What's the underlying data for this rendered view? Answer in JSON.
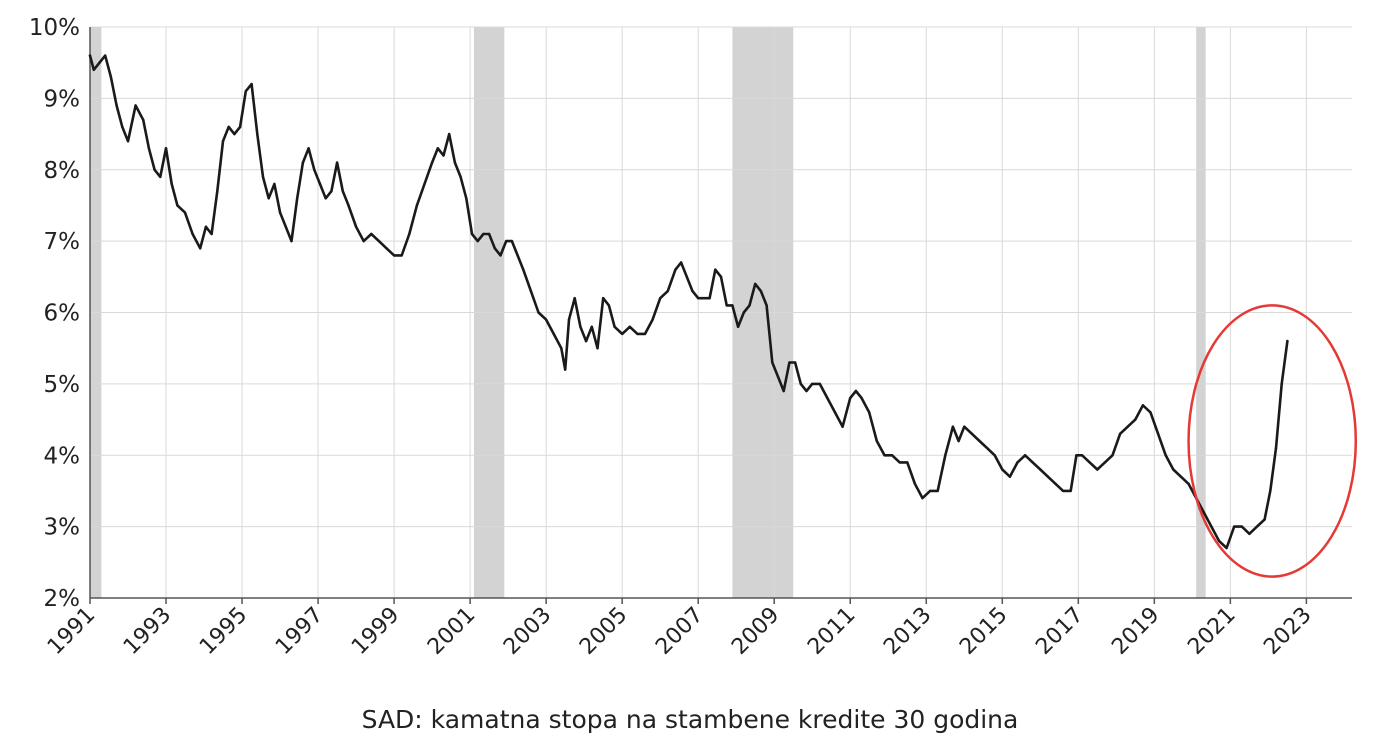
{
  "chart_data": {
    "type": "line",
    "title": "SAD: kamatna stopa na stambene kredite 30 godina",
    "xlabel": "",
    "ylabel": "",
    "xlim": [
      1991,
      2024.2
    ],
    "ylim": [
      2,
      10
    ],
    "x_ticks": [
      1991,
      1993,
      1995,
      1997,
      1999,
      2001,
      2003,
      2005,
      2007,
      2009,
      2011,
      2013,
      2015,
      2017,
      2019,
      2021,
      2023
    ],
    "x_tick_labels": [
      "1991",
      "1993",
      "1995",
      "1997",
      "1999",
      "2001",
      "2003",
      "2005",
      "2007",
      "2009",
      "2011",
      "2013",
      "2015",
      "2017",
      "2019",
      "2021",
      "2023"
    ],
    "y_ticks": [
      2,
      3,
      4,
      5,
      6,
      7,
      8,
      9,
      10
    ],
    "y_tick_labels": [
      "2%",
      "3%",
      "4%",
      "5%",
      "6%",
      "7%",
      "8%",
      "9%",
      "10%"
    ],
    "grid": true,
    "recessions": [
      [
        1991.0,
        1991.3
      ],
      [
        2001.1,
        2001.9
      ],
      [
        2007.9,
        2009.5
      ],
      [
        2020.1,
        2020.35
      ]
    ],
    "highlight_ellipse": {
      "x_center": 2022.1,
      "y_center": 4.2,
      "x_radius": 2.2,
      "y_radius": 1.9,
      "color": "#e53935"
    },
    "series": [
      {
        "x": [
          1991.0,
          1991.1,
          1991.25,
          1991.4,
          1991.55,
          1991.7,
          1991.85,
          1992.0,
          1992.2,
          1992.4,
          1992.55,
          1992.7,
          1992.85,
          1993.0,
          1993.15,
          1993.3,
          1993.5,
          1993.7,
          1993.9,
          1994.05,
          1994.2,
          1994.35,
          1994.5,
          1994.65,
          1994.8,
          1994.95,
          1995.1,
          1995.25,
          1995.4,
          1995.55,
          1995.7,
          1995.85,
          1996.0,
          1996.15,
          1996.3,
          1996.45,
          1996.6,
          1996.75,
          1996.9,
          1997.05,
          1997.2,
          1997.35,
          1997.5,
          1997.65,
          1997.8,
          1998.0,
          1998.2,
          1998.4,
          1998.6,
          1998.8,
          1999.0,
          1999.2,
          1999.4,
          1999.6,
          1999.8,
          2000.0,
          2000.15,
          2000.3,
          2000.45,
          2000.6,
          2000.75,
          2000.9,
          2001.05,
          2001.2,
          2001.35,
          2001.5,
          2001.65,
          2001.8,
          2001.95,
          2002.1,
          2002.25,
          2002.4,
          2002.6,
          2002.8,
          2003.0,
          2003.2,
          2003.4,
          2003.5,
          2003.6,
          2003.75,
          2003.9,
          2004.05,
          2004.2,
          2004.35,
          2004.5,
          2004.65,
          2004.8,
          2005.0,
          2005.2,
          2005.4,
          2005.6,
          2005.8,
          2006.0,
          2006.2,
          2006.4,
          2006.55,
          2006.7,
          2006.85,
          2007.0,
          2007.15,
          2007.3,
          2007.45,
          2007.6,
          2007.75,
          2007.9,
          2008.05,
          2008.2,
          2008.35,
          2008.5,
          2008.65,
          2008.8,
          2008.95,
          2009.1,
          2009.25,
          2009.4,
          2009.55,
          2009.7,
          2009.85,
          2010.0,
          2010.2,
          2010.4,
          2010.6,
          2010.8,
          2011.0,
          2011.15,
          2011.3,
          2011.5,
          2011.7,
          2011.9,
          2012.1,
          2012.3,
          2012.5,
          2012.7,
          2012.9,
          2013.1,
          2013.3,
          2013.5,
          2013.7,
          2013.85,
          2014.0,
          2014.2,
          2014.4,
          2014.6,
          2014.8,
          2015.0,
          2015.2,
          2015.4,
          2015.6,
          2015.8,
          2016.0,
          2016.2,
          2016.4,
          2016.6,
          2016.8,
          2016.95,
          2017.1,
          2017.3,
          2017.5,
          2017.7,
          2017.9,
          2018.1,
          2018.3,
          2018.5,
          2018.7,
          2018.9,
          2019.1,
          2019.3,
          2019.5,
          2019.7,
          2019.9,
          2020.1,
          2020.3,
          2020.5,
          2020.7,
          2020.9,
          2021.1,
          2021.3,
          2021.5,
          2021.7,
          2021.9,
          2022.05,
          2022.2,
          2022.35,
          2022.5
        ],
        "y": [
          9.6,
          9.4,
          9.5,
          9.6,
          9.3,
          8.9,
          8.6,
          8.4,
          8.9,
          8.7,
          8.3,
          8.0,
          7.9,
          8.3,
          7.8,
          7.5,
          7.4,
          7.1,
          6.9,
          7.2,
          7.1,
          7.7,
          8.4,
          8.6,
          8.5,
          8.6,
          9.1,
          9.2,
          8.5,
          7.9,
          7.6,
          7.8,
          7.4,
          7.2,
          7.0,
          7.6,
          8.1,
          8.3,
          8.0,
          7.8,
          7.6,
          7.7,
          8.1,
          7.7,
          7.5,
          7.2,
          7.0,
          7.1,
          7.0,
          6.9,
          6.8,
          6.8,
          7.1,
          7.5,
          7.8,
          8.1,
          8.3,
          8.2,
          8.5,
          8.1,
          7.9,
          7.6,
          7.1,
          7.0,
          7.1,
          7.1,
          6.9,
          6.8,
          7.0,
          7.0,
          6.8,
          6.6,
          6.3,
          6.0,
          5.9,
          5.7,
          5.5,
          5.2,
          5.9,
          6.2,
          5.8,
          5.6,
          5.8,
          5.5,
          6.2,
          6.1,
          5.8,
          5.7,
          5.8,
          5.7,
          5.7,
          5.9,
          6.2,
          6.3,
          6.6,
          6.7,
          6.5,
          6.3,
          6.2,
          6.2,
          6.2,
          6.6,
          6.5,
          6.1,
          6.1,
          5.8,
          6.0,
          6.1,
          6.4,
          6.3,
          6.1,
          5.3,
          5.1,
          4.9,
          5.3,
          5.3,
          5.0,
          4.9,
          5.0,
          5.0,
          4.8,
          4.6,
          4.4,
          4.8,
          4.9,
          4.8,
          4.6,
          4.2,
          4.0,
          4.0,
          3.9,
          3.9,
          3.6,
          3.4,
          3.5,
          3.5,
          4.0,
          4.4,
          4.2,
          4.4,
          4.3,
          4.2,
          4.1,
          4.0,
          3.8,
          3.7,
          3.9,
          4.0,
          3.9,
          3.8,
          3.7,
          3.6,
          3.5,
          3.5,
          4.0,
          4.0,
          3.9,
          3.8,
          3.9,
          4.0,
          4.3,
          4.4,
          4.5,
          4.7,
          4.6,
          4.3,
          4.0,
          3.8,
          3.7,
          3.6,
          3.4,
          3.2,
          3.0,
          2.8,
          2.7,
          3.0,
          3.0,
          2.9,
          3.0,
          3.1,
          3.5,
          4.1,
          5.0,
          5.6
        ]
      }
    ]
  }
}
